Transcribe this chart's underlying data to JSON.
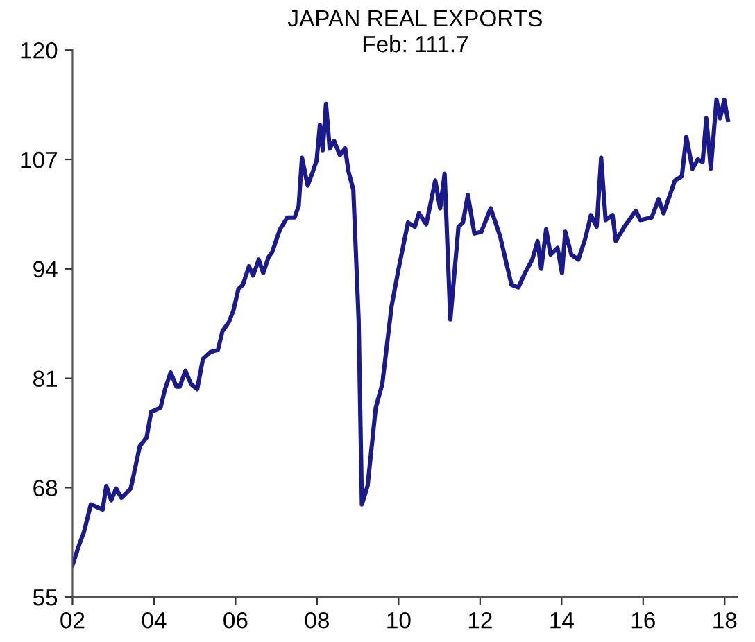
{
  "chart_data": {
    "type": "line",
    "title": "JAPAN REAL EXPORTS",
    "subtitle": "Feb: 111.7",
    "xlim": [
      2002,
      2018.3
    ],
    "ylim": [
      55,
      120
    ],
    "xticks": [
      {
        "value": 2002,
        "label": "02"
      },
      {
        "value": 2004,
        "label": "04"
      },
      {
        "value": 2006,
        "label": "06"
      },
      {
        "value": 2008,
        "label": "08"
      },
      {
        "value": 2010,
        "label": "10"
      },
      {
        "value": 2012,
        "label": "12"
      },
      {
        "value": 2014,
        "label": "14"
      },
      {
        "value": 2016,
        "label": "16"
      },
      {
        "value": 2018,
        "label": "18"
      }
    ],
    "yticks": [
      55,
      68,
      81,
      94,
      107,
      120
    ],
    "grid": false,
    "marker": "none",
    "line_style": "solid",
    "series": [
      {
        "color": "#1a1a8c",
        "x": [
          2002.0,
          2002.17,
          2002.28,
          2002.45,
          2002.74,
          2002.83,
          2002.95,
          2003.07,
          2003.2,
          2003.43,
          2003.65,
          2003.82,
          2003.93,
          2004.16,
          2004.27,
          2004.41,
          2004.55,
          2004.63,
          2004.77,
          2004.91,
          2005.06,
          2005.2,
          2005.38,
          2005.57,
          2005.68,
          2005.84,
          2005.95,
          2006.07,
          2006.18,
          2006.33,
          2006.43,
          2006.57,
          2006.68,
          2006.81,
          2006.9,
          2007.09,
          2007.27,
          2007.45,
          2007.55,
          2007.63,
          2007.77,
          2007.9,
          2007.99,
          2008.07,
          2008.14,
          2008.22,
          2008.31,
          2008.42,
          2008.56,
          2008.69,
          2008.77,
          2008.89,
          2009.02,
          2009.1,
          2009.24,
          2009.44,
          2009.6,
          2009.83,
          2010.0,
          2010.23,
          2010.4,
          2010.5,
          2010.68,
          2010.9,
          2011.02,
          2011.13,
          2011.27,
          2011.47,
          2011.58,
          2011.7,
          2011.86,
          2012.03,
          2012.26,
          2012.49,
          2012.77,
          2012.94,
          2013.1,
          2013.28,
          2013.41,
          2013.5,
          2013.62,
          2013.73,
          2013.9,
          2014.01,
          2014.09,
          2014.24,
          2014.41,
          2014.58,
          2014.72,
          2014.86,
          2014.97,
          2015.08,
          2015.25,
          2015.33,
          2015.54,
          2015.82,
          2015.93,
          2016.21,
          2016.38,
          2016.5,
          2016.78,
          2016.95,
          2017.06,
          2017.21,
          2017.34,
          2017.46,
          2017.55,
          2017.66,
          2017.8,
          2017.89,
          2017.99,
          2018.08
        ],
        "values": [
          58.8,
          61.3,
          62.7,
          66.0,
          65.4,
          68.2,
          66.5,
          67.9,
          66.8,
          67.9,
          72.9,
          74.0,
          77.0,
          77.5,
          79.7,
          81.7,
          80.0,
          80.0,
          81.9,
          80.3,
          79.7,
          83.3,
          84.1,
          84.4,
          86.6,
          87.7,
          89.1,
          91.6,
          92.1,
          94.3,
          93.2,
          95.1,
          93.5,
          95.4,
          96.0,
          98.7,
          100.1,
          100.1,
          101.5,
          107.2,
          103.9,
          105.6,
          106.9,
          111.1,
          108.1,
          113.6,
          108.3,
          109.2,
          107.5,
          108.3,
          105.6,
          103.4,
          88.0,
          66.0,
          68.2,
          77.5,
          80.3,
          89.6,
          94.0,
          99.5,
          99.0,
          100.6,
          99.3,
          104.5,
          101.2,
          105.3,
          88.0,
          99.0,
          99.5,
          102.8,
          98.2,
          98.4,
          101.2,
          97.9,
          92.1,
          91.8,
          93.5,
          95.1,
          97.3,
          94.0,
          98.7,
          95.7,
          96.5,
          93.5,
          98.4,
          95.7,
          95.1,
          97.6,
          100.4,
          99.0,
          107.2,
          99.8,
          100.4,
          97.3,
          99.0,
          100.9,
          99.8,
          100.1,
          102.3,
          100.6,
          104.5,
          105.0,
          109.7,
          105.9,
          107.0,
          106.7,
          111.9,
          105.9,
          114.1,
          111.9,
          114.1,
          111.7
        ]
      }
    ]
  }
}
